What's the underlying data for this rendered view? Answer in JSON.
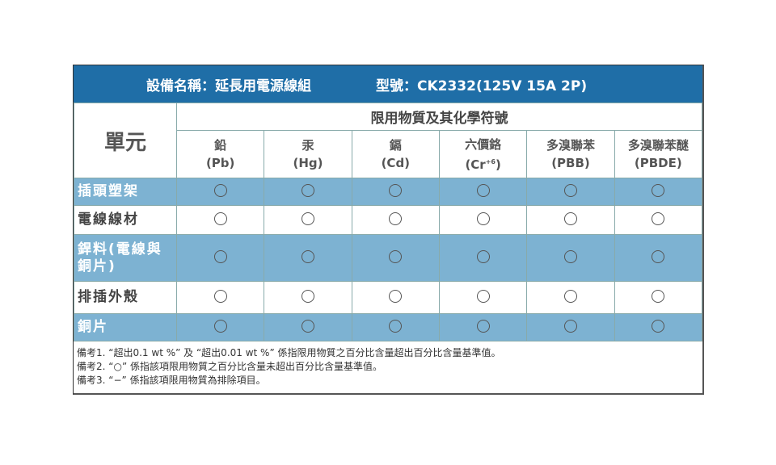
{
  "title": {
    "equipment": "設備名稱：延長用電源線組",
    "model": "型號：CK2332(125V 15A 2P)"
  },
  "header": {
    "unit": "單元",
    "group": "限用物質及其化學符號",
    "columns": [
      {
        "name": "鉛",
        "symbol": "(Pb)"
      },
      {
        "name": "汞",
        "symbol": "(Hg)"
      },
      {
        "name": "鎘",
        "symbol": "(Cd)"
      },
      {
        "name": "六價鉻",
        "symbol": "(Cr",
        "sup": "+6",
        "close": ")"
      },
      {
        "name": "多溴聯苯",
        "symbol": "(PBB)"
      },
      {
        "name": "多溴聯苯醚",
        "symbol": "(PBDE)"
      }
    ]
  },
  "rows": [
    {
      "label": "插頭塑架",
      "values": [
        "○",
        "○",
        "○",
        "○",
        "○",
        "○"
      ]
    },
    {
      "label": "電線線材",
      "values": [
        "○",
        "○",
        "○",
        "○",
        "○",
        "○"
      ]
    },
    {
      "label": "銲料(電線與銅片)",
      "values": [
        "○",
        "○",
        "○",
        "○",
        "○",
        "○"
      ]
    },
    {
      "label": "排插外殼",
      "values": [
        "○",
        "○",
        "○",
        "○",
        "○",
        "○"
      ]
    },
    {
      "label": "銅片",
      "values": [
        "○",
        "○",
        "○",
        "○",
        "○",
        "○"
      ]
    }
  ],
  "notes": [
    "備考1. “超出0.1 wt %” 及 “超出0.01 wt %” 係指限用物質之百分比含量超出百分比含量基準值。",
    "備考2. “○” 係指該項限用物質之百分比含量未超出百分比含量基準值。",
    "備考3. “−” 係指該項限用物質為排除項目。"
  ],
  "colors": {
    "header": "#1f6ea7",
    "row_alt": "#7db2d2"
  }
}
